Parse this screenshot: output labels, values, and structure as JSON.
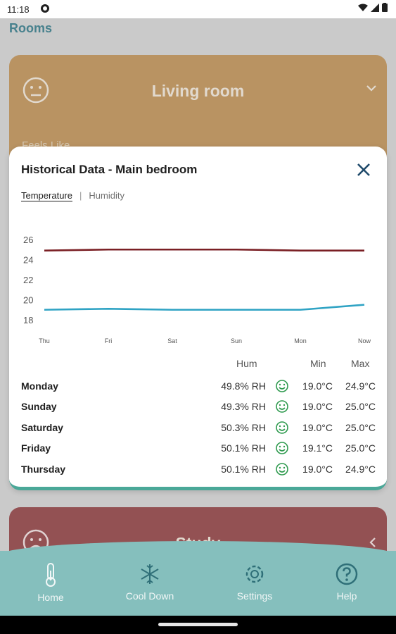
{
  "status_bar": {
    "time": "11:18"
  },
  "header": {
    "title": "Rooms"
  },
  "cards": {
    "living": {
      "title": "Living room",
      "feels_like": "Feels Like"
    },
    "study": {
      "title": "Study"
    }
  },
  "modal": {
    "title": "Historical Data - Main bedroom",
    "tabs": {
      "temperature": "Temperature",
      "separator": "|",
      "humidity": "Humidity"
    },
    "table": {
      "headers": {
        "hum": "Hum",
        "min": "Min",
        "max": "Max"
      },
      "rows": [
        {
          "day": "Monday",
          "hum": "49.8% RH",
          "min": "19.0°C",
          "max": "24.9°C"
        },
        {
          "day": "Sunday",
          "hum": "49.3% RH",
          "min": "19.0°C",
          "max": "25.0°C"
        },
        {
          "day": "Saturday",
          "hum": "50.3% RH",
          "min": "19.0°C",
          "max": "25.0°C"
        },
        {
          "day": "Friday",
          "hum": "50.1% RH",
          "min": "19.1°C",
          "max": "25.0°C"
        },
        {
          "day": "Thursday",
          "hum": "50.1% RH",
          "min": "19.0°C",
          "max": "24.9°C"
        }
      ]
    }
  },
  "chart_data": {
    "type": "line",
    "categories": [
      "Thu",
      "Fri",
      "Sat",
      "Sun",
      "Mon",
      "Now"
    ],
    "yticks": [
      "26",
      "24",
      "22",
      "20",
      "18"
    ],
    "ylim": [
      18,
      26
    ],
    "series": [
      {
        "values": [
          24.9,
          25.0,
          25.0,
          25.0,
          24.9,
          24.9
        ],
        "color": "#7a1f24"
      },
      {
        "values": [
          19.0,
          19.1,
          19.0,
          19.0,
          19.0,
          19.5
        ],
        "color": "#2fa3c4"
      }
    ]
  },
  "bottom_nav": {
    "items": [
      {
        "label": "Home"
      },
      {
        "label": "Cool Down"
      },
      {
        "label": "Settings"
      },
      {
        "label": "Help"
      }
    ]
  },
  "colors": {
    "accent": "#4e8c9a",
    "living_card": "#c9a06b",
    "study_card": "#a0585b",
    "nav": "#85bfbd",
    "face_ok": "#2e9a4e"
  },
  "icons": [
    "thermometer-icon",
    "snowflake-icon",
    "gear-icon",
    "help-icon",
    "close-icon",
    "smiley-icon",
    "neutral-face-icon",
    "sad-face-icon",
    "chevron-down-icon",
    "chevron-left-icon"
  ]
}
